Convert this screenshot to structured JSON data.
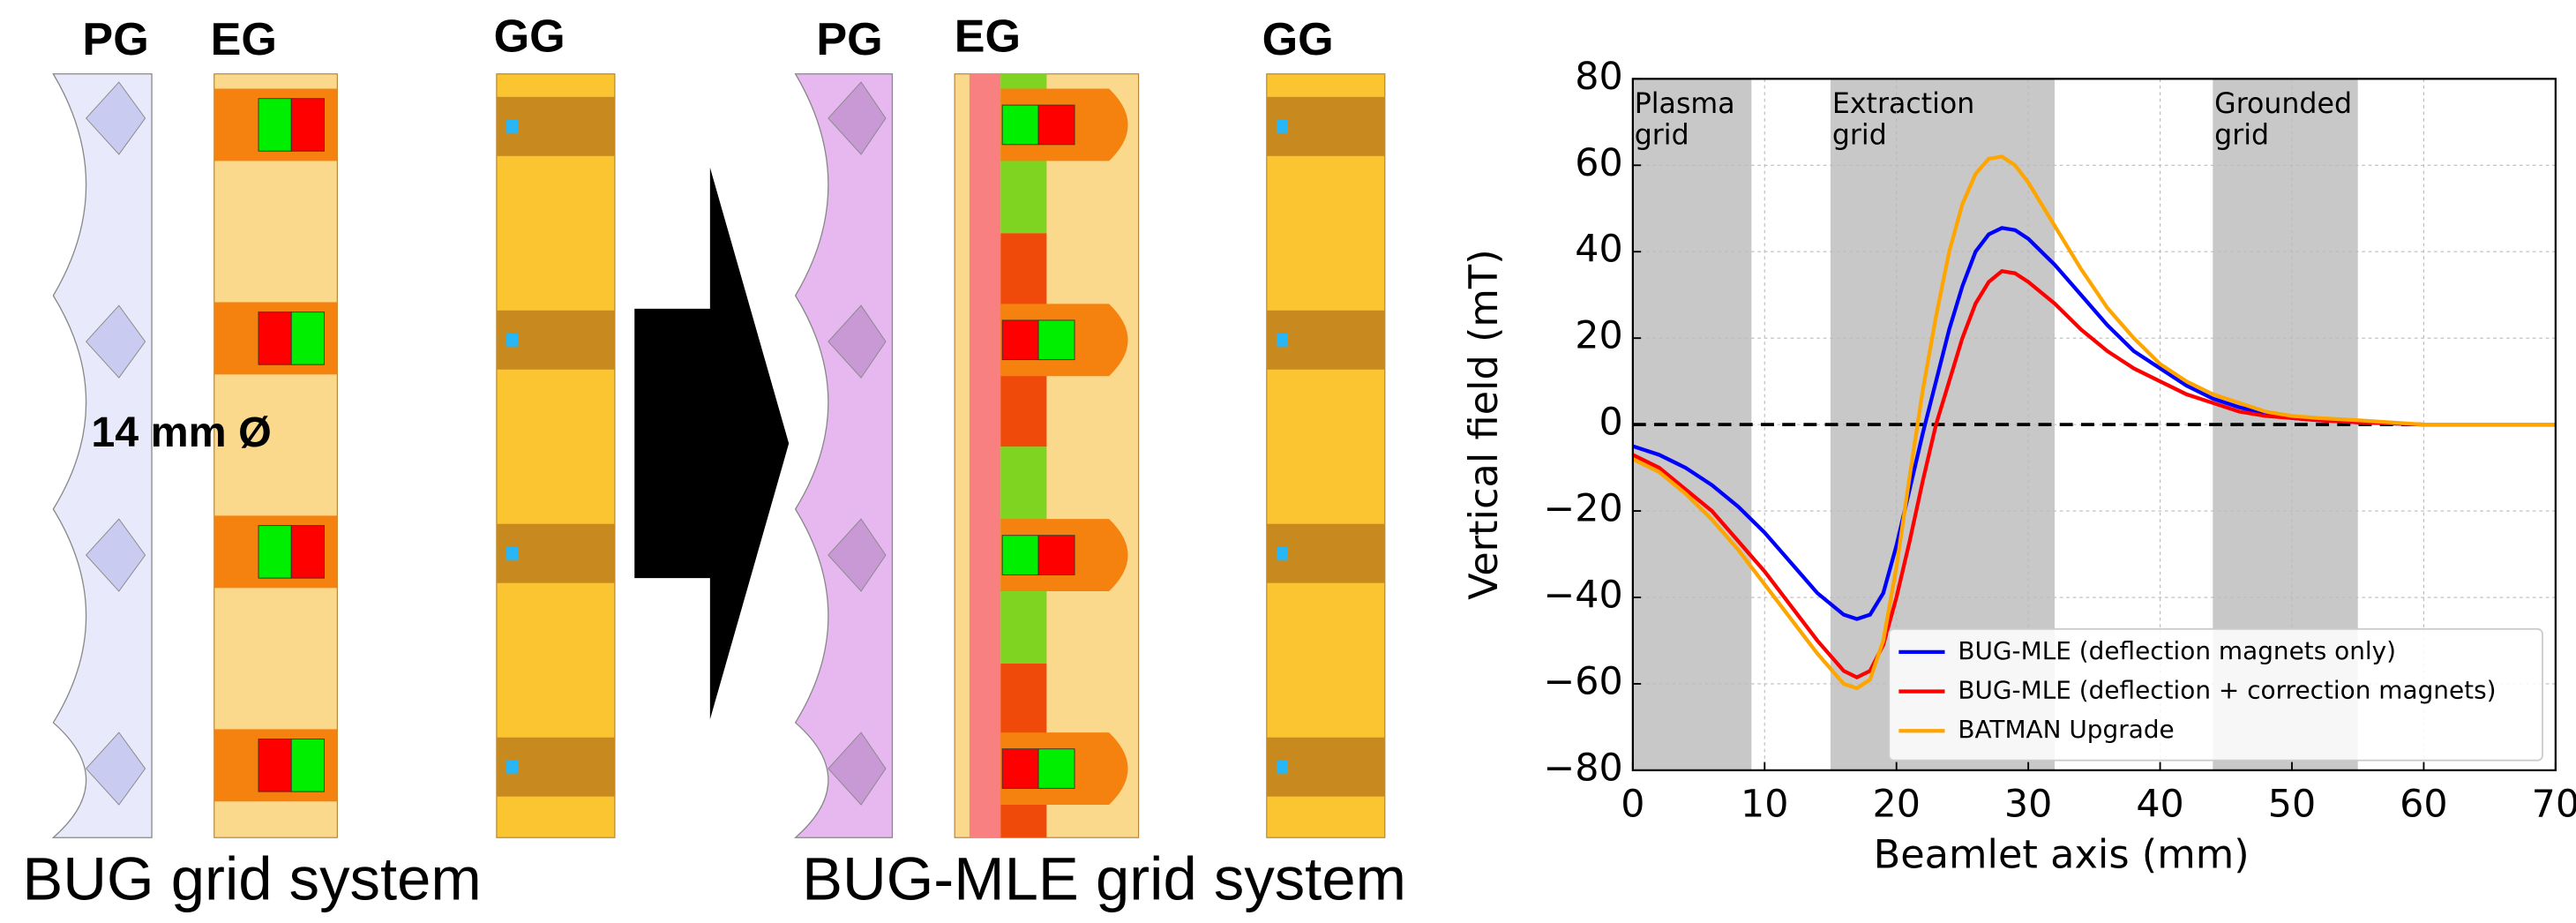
{
  "diagram": {
    "left": {
      "labels": [
        "PG",
        "EG",
        "GG"
      ],
      "note": "14 mm Ø",
      "caption": "BUG grid system"
    },
    "right": {
      "labels": [
        "PG",
        "EG",
        "GG"
      ],
      "caption": "BUG-MLE grid system"
    }
  },
  "chart_data": {
    "type": "line",
    "xlabel": "Beamlet axis (mm)",
    "ylabel": "Vertical field (mT)",
    "xlim": [
      0,
      70
    ],
    "ylim": [
      -80,
      80
    ],
    "xticks": [
      0,
      10,
      20,
      30,
      40,
      50,
      60,
      70
    ],
    "yticks": [
      {
        "value": -80,
        "label": "−80"
      },
      {
        "value": -60,
        "label": "−60"
      },
      {
        "value": -40,
        "label": "−40"
      },
      {
        "value": -20,
        "label": "−20"
      },
      0,
      20,
      40,
      60,
      80
    ],
    "grid": true,
    "legend": "lower right",
    "hline": 0,
    "regions": [
      {
        "label": [
          "Plasma",
          "grid"
        ],
        "x": [
          0,
          9
        ]
      },
      {
        "label": [
          "Extraction",
          "grid"
        ],
        "x": [
          15,
          32
        ]
      },
      {
        "label": [
          "Grounded",
          "grid"
        ],
        "x": [
          44,
          55
        ]
      }
    ],
    "x": [
      0,
      2,
      4,
      6,
      8,
      10,
      12,
      14,
      16,
      17,
      18,
      19,
      20,
      21,
      22,
      23,
      24,
      25,
      26,
      27,
      28,
      29,
      30,
      32,
      34,
      36,
      38,
      40,
      42,
      44,
      46,
      48,
      50,
      52,
      55,
      60,
      65,
      70
    ],
    "series": [
      {
        "name": "BUG-MLE (deflection magnets only)",
        "color": "#0000ff",
        "values": [
          -5,
          -7,
          -10,
          -14,
          -19,
          -25,
          -32,
          -39,
          -44,
          -45,
          -44,
          -39,
          -28,
          -15,
          -2,
          10,
          22,
          32,
          40,
          44,
          45.5,
          45,
          43,
          37,
          30,
          23,
          17,
          13,
          9,
          6,
          4,
          2.5,
          1.5,
          1,
          0.5,
          0,
          0,
          0
        ]
      },
      {
        "name": "BUG-MLE (deflection + correction magnets)",
        "color": "#ff0000",
        "values": [
          -7,
          -10,
          -15,
          -20,
          -27,
          -34,
          -42,
          -50,
          -57,
          -58.5,
          -57,
          -51,
          -40,
          -27,
          -13,
          0,
          10,
          20,
          28,
          33,
          35.5,
          35,
          33,
          28,
          22,
          17,
          13,
          10,
          7,
          5,
          3,
          2,
          1.5,
          1,
          0.5,
          0,
          0,
          0
        ]
      },
      {
        "name": "BATMAN Upgrade",
        "color": "#ffa500",
        "values": [
          -8,
          -11,
          -16,
          -22,
          -29,
          -37,
          -45,
          -53,
          -60,
          -61,
          -59,
          -50,
          -33,
          -12,
          8,
          25,
          40,
          51,
          58,
          61.5,
          62,
          60,
          56,
          46,
          36,
          27,
          20,
          14,
          10,
          7,
          5,
          3,
          2,
          1.5,
          1,
          0,
          0,
          0
        ]
      }
    ]
  }
}
